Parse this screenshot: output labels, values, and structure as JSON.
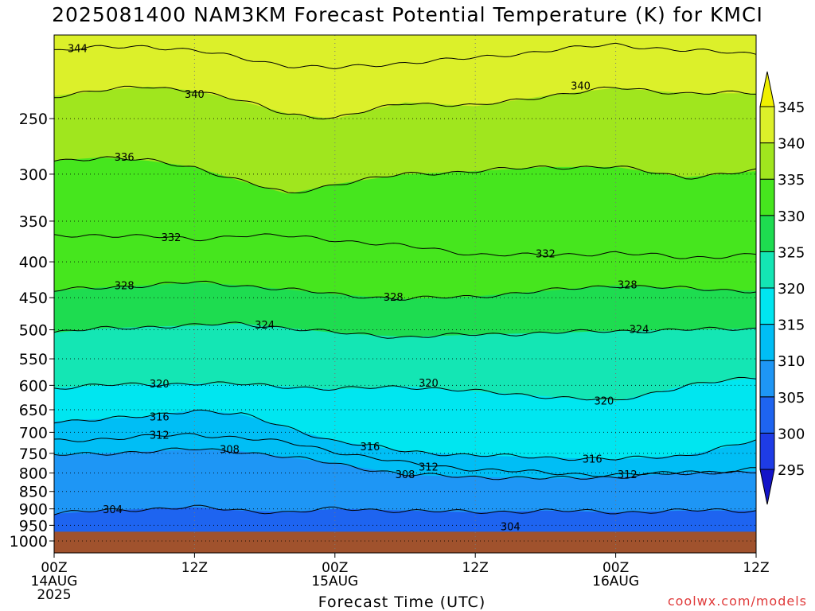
{
  "title": "2025081400 NAM3KM Forecast Potential Temperature (K) for KMCI",
  "credit": "coolwx.com/models",
  "chart_data": {
    "type": "heatmap",
    "title": "2025081400 NAM3KM Forecast Potential Temperature (K) for KMCI",
    "xlabel": "Forecast Time (UTC)",
    "ylabel": "",
    "x_range_hours": [
      0,
      60
    ],
    "y_range_hpa": [
      1040,
      190
    ],
    "y_scale": "log",
    "surface_pressure_hpa": 970,
    "x_ticks": [
      {
        "hour": 0,
        "label": "00Z",
        "sub": [
          "14AUG",
          "2025"
        ]
      },
      {
        "hour": 12,
        "label": "12Z",
        "sub": []
      },
      {
        "hour": 24,
        "label": "00Z",
        "sub": [
          "15AUG"
        ]
      },
      {
        "hour": 36,
        "label": "12Z",
        "sub": []
      },
      {
        "hour": 48,
        "label": "00Z",
        "sub": [
          "16AUG"
        ]
      },
      {
        "hour": 60,
        "label": "12Z",
        "sub": []
      }
    ],
    "y_ticks": [
      250,
      300,
      350,
      400,
      450,
      500,
      550,
      600,
      650,
      700,
      750,
      800,
      850,
      900,
      950,
      1000
    ],
    "colorbar": {
      "levels": [
        295,
        300,
        305,
        310,
        315,
        320,
        325,
        330,
        335,
        340,
        345
      ],
      "colors": [
        "#1414c8",
        "#1e3ce6",
        "#1e64f0",
        "#1e96f5",
        "#00bef5",
        "#00e6f0",
        "#14e6b4",
        "#1edc50",
        "#46e61e",
        "#a0e61e",
        "#dcf02a",
        "#f0f000"
      ]
    },
    "grid": true,
    "contour_interval": 4,
    "contours": [
      {
        "level": 304,
        "x": [
          0,
          4,
          8,
          12,
          16,
          20,
          24,
          30,
          36,
          42,
          48,
          54,
          60
        ],
        "p": [
          915,
          905,
          900,
          895,
          905,
          910,
          900,
          905,
          910,
          905,
          910,
          905,
          905
        ]
      },
      {
        "level": 308,
        "x": [
          0,
          4,
          8,
          12,
          16,
          20,
          24,
          30,
          36,
          42,
          48,
          54,
          60
        ],
        "p": [
          755,
          750,
          745,
          740,
          745,
          760,
          775,
          805,
          810,
          815,
          810,
          800,
          795
        ]
      },
      {
        "level": 312,
        "x": [
          0,
          4,
          8,
          12,
          16,
          20,
          24,
          30,
          36,
          42,
          48,
          54,
          60
        ],
        "p": [
          720,
          715,
          710,
          705,
          712,
          725,
          745,
          775,
          790,
          800,
          805,
          800,
          790
        ]
      },
      {
        "level": 316,
        "x": [
          0,
          4,
          8,
          12,
          16,
          20,
          24,
          30,
          36,
          42,
          48,
          54,
          60
        ],
        "p": [
          675,
          670,
          665,
          650,
          660,
          690,
          720,
          745,
          755,
          760,
          765,
          755,
          720
        ]
      },
      {
        "level": 320,
        "x": [
          0,
          4,
          8,
          12,
          16,
          20,
          24,
          30,
          36,
          42,
          48,
          54,
          60
        ],
        "p": [
          605,
          600,
          598,
          596,
          598,
          602,
          608,
          602,
          612,
          622,
          632,
          600,
          585
        ]
      },
      {
        "level": 324,
        "x": [
          0,
          4,
          8,
          12,
          16,
          20,
          24,
          30,
          36,
          42,
          48,
          54,
          60
        ],
        "p": [
          505,
          498,
          495,
          493,
          490,
          497,
          505,
          512,
          508,
          505,
          502,
          500,
          498
        ]
      },
      {
        "level": 328,
        "x": [
          0,
          4,
          8,
          12,
          16,
          20,
          24,
          30,
          36,
          42,
          48,
          54,
          60
        ],
        "p": [
          440,
          435,
          432,
          428,
          432,
          438,
          445,
          452,
          448,
          440,
          432,
          437,
          440
        ]
      },
      {
        "level": 332,
        "x": [
          0,
          4,
          8,
          12,
          16,
          20,
          24,
          30,
          36,
          42,
          48,
          54,
          60
        ],
        "p": [
          368,
          366,
          368,
          372,
          366,
          368,
          372,
          380,
          390,
          392,
          388,
          395,
          390
        ]
      },
      {
        "level": 336,
        "x": [
          0,
          4,
          8,
          12,
          16,
          20,
          24,
          30,
          36,
          42,
          48,
          54,
          60
        ],
        "p": [
          287,
          284,
          287,
          293,
          307,
          320,
          310,
          300,
          297,
          293,
          293,
          303,
          297
        ]
      },
      {
        "level": 340,
        "x": [
          0,
          4,
          8,
          12,
          16,
          20,
          24,
          30,
          36,
          42,
          48,
          54,
          60
        ],
        "p": [
          232,
          228,
          225,
          228,
          236,
          246,
          250,
          237,
          240,
          232,
          226,
          230,
          230
        ]
      },
      {
        "level": 344,
        "x": [
          0,
          4,
          8,
          12,
          16,
          20,
          24,
          30,
          36,
          42,
          48,
          54,
          60
        ],
        "p": [
          200,
          198,
          197,
          200,
          205,
          210,
          212,
          208,
          205,
          200,
          196,
          200,
          202
        ]
      }
    ],
    "contour_labels": [
      {
        "text": "344",
        "x": 2,
        "p": 199
      },
      {
        "text": "340",
        "x": 12,
        "p": 231
      },
      {
        "text": "340",
        "x": 45,
        "p": 225
      },
      {
        "text": "336",
        "x": 6,
        "p": 284
      },
      {
        "text": "332",
        "x": 10,
        "p": 370
      },
      {
        "text": "332",
        "x": 42,
        "p": 390
      },
      {
        "text": "328",
        "x": 6,
        "p": 433
      },
      {
        "text": "328",
        "x": 29,
        "p": 450
      },
      {
        "text": "328",
        "x": 49,
        "p": 432
      },
      {
        "text": "324",
        "x": 18,
        "p": 493
      },
      {
        "text": "324",
        "x": 50,
        "p": 500
      },
      {
        "text": "320",
        "x": 9,
        "p": 598
      },
      {
        "text": "320",
        "x": 32,
        "p": 596
      },
      {
        "text": "320",
        "x": 47,
        "p": 632
      },
      {
        "text": "316",
        "x": 9,
        "p": 666
      },
      {
        "text": "316",
        "x": 27,
        "p": 735
      },
      {
        "text": "316",
        "x": 46,
        "p": 765
      },
      {
        "text": "312",
        "x": 9,
        "p": 708
      },
      {
        "text": "312",
        "x": 32,
        "p": 785
      },
      {
        "text": "312",
        "x": 49,
        "p": 805
      },
      {
        "text": "308",
        "x": 15,
        "p": 742
      },
      {
        "text": "308",
        "x": 30,
        "p": 805
      },
      {
        "text": "304",
        "x": 5,
        "p": 903
      },
      {
        "text": "304",
        "x": 39,
        "p": 955
      }
    ]
  }
}
